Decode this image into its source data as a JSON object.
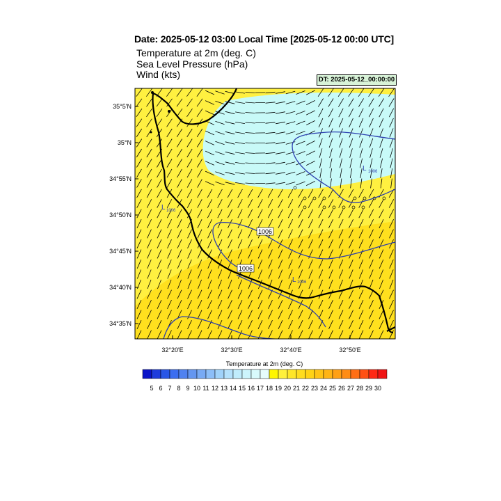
{
  "header": {
    "title": "Date: 2025-05-12  03:00 Local Time [2025-05-12  00:00 UTC]",
    "fields": [
      "Temperature at 2m   (deg. C)",
      "Sea Level Pressure   (hPa)",
      "Wind   (kts)"
    ],
    "dt_label": "DT: 2025-05-12_00:00:00"
  },
  "map": {
    "lat_labels": [
      "35°5'N",
      "35°N",
      "34°55'N",
      "34°50'N",
      "34°45'N",
      "34°40'N",
      "34°35'N"
    ],
    "lon_labels": [
      "32°20'E",
      "32°30'E",
      "32°40'E",
      "32°50'E"
    ],
    "contour_labels": [
      "1006",
      "1006"
    ],
    "low_markers": [
      "1006",
      "1006",
      "1006"
    ],
    "colors": {
      "warm": "#fff040",
      "warmer": "#ffe01e",
      "cool": "#c8faf8",
      "isobar": "#2c3fb0",
      "coast": "#000000"
    }
  },
  "legend": {
    "title": "Temperature at 2m  (deg. C)",
    "ticks": [
      "5",
      "6",
      "7",
      "8",
      "9",
      "10",
      "11",
      "12",
      "13",
      "14",
      "15",
      "16",
      "17",
      "18",
      "19",
      "20",
      "21",
      "22",
      "23",
      "24",
      "25",
      "26",
      "27",
      "28",
      "29",
      "30"
    ],
    "colors": [
      "#0a14c8",
      "#1e3cdc",
      "#2856e6",
      "#3c6ef0",
      "#5082f0",
      "#6496f0",
      "#78aaf4",
      "#8cbef8",
      "#a0d2fa",
      "#b4e1fc",
      "#c0ecfc",
      "#ccf4fc",
      "#d8fafc",
      "#e6fcfc",
      "#fff600",
      "#fff03c",
      "#ffe628",
      "#ffdc1e",
      "#ffd214",
      "#ffc314",
      "#ffb414",
      "#ffa014",
      "#ff8c14",
      "#ff6e14",
      "#ff5014",
      "#ff2814",
      "#f01414"
    ]
  }
}
